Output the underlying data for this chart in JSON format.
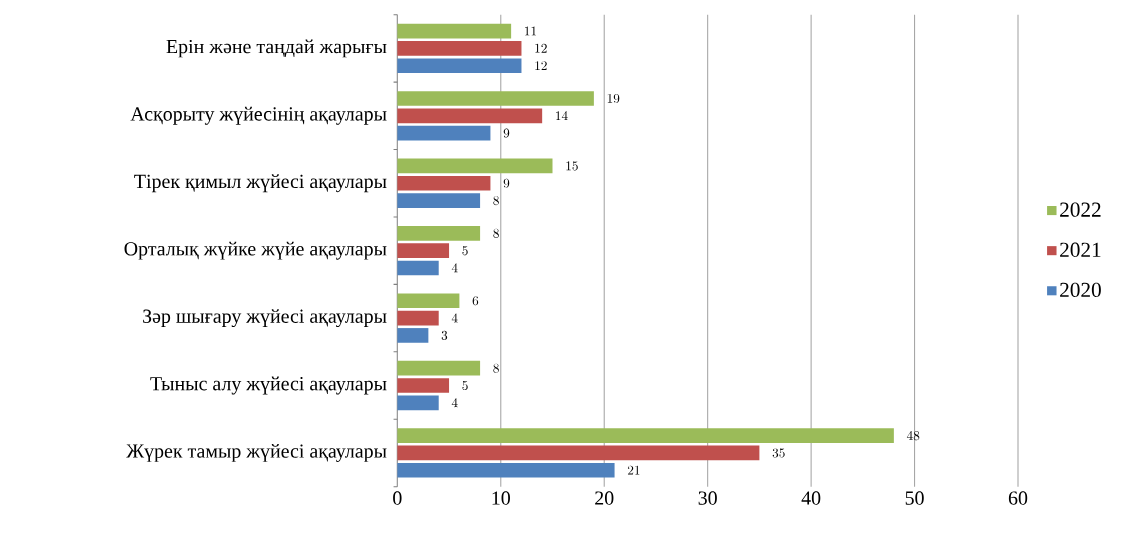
{
  "chart_data": {
    "type": "bar",
    "orientation": "horizontal",
    "categories": [
      "Ерін және таңдай жарығы",
      "Асқорыту жүйесінің ақаулары",
      "Тірек қимыл жүйесі ақаулары",
      "Орталық жүйке жүйе ақаулары",
      "Зәр шығару жүйесі ақаулары",
      "Тыныс алу жүйесі ақаулары",
      "Жүрек тамыр жүйесі ақаулары"
    ],
    "series": [
      {
        "name": "2020",
        "color": "#4f81bd",
        "values": [
          12,
          9,
          8,
          4,
          3,
          4,
          21
        ]
      },
      {
        "name": "2021",
        "color": "#c0504d",
        "values": [
          12,
          14,
          9,
          5,
          4,
          5,
          35
        ]
      },
      {
        "name": "2022",
        "color": "#9bbb59",
        "values": [
          11,
          19,
          15,
          8,
          6,
          8,
          48
        ]
      }
    ],
    "xlim": [
      0,
      60
    ],
    "xticks": [
      0,
      10,
      20,
      30,
      40,
      50,
      60
    ],
    "grid": "x",
    "legend": "right",
    "data_labels": true
  }
}
